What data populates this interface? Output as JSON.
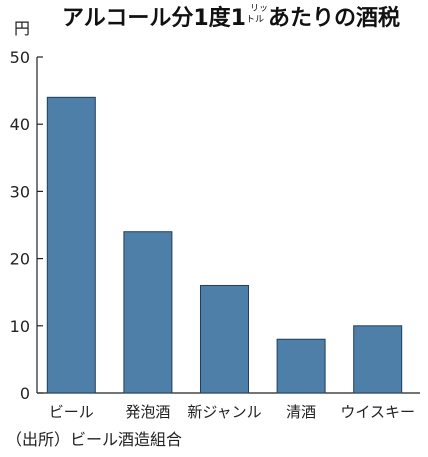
{
  "header": {
    "title_main": "アルコール分1度1",
    "title_unit_top": "リッ",
    "title_unit_bottom": "トル",
    "title_rest": "あたりの酒税",
    "unit": "円"
  },
  "footer": {
    "source": "（出所）ビール酒造組合"
  },
  "colors": {
    "bar": "#4e7fa8",
    "bar_stroke": "#1f3f5c",
    "axis": "#222222"
  },
  "chart_data": {
    "type": "bar",
    "title": "アルコール分1度1リットルあたりの酒税",
    "ylabel": "円",
    "categories": [
      "ビール",
      "発泡酒",
      "新ジャンル",
      "清酒",
      "ウイスキー"
    ],
    "values": [
      44,
      24,
      16,
      8,
      10
    ],
    "ylim": [
      0,
      50
    ],
    "yticks": [
      0,
      10,
      20,
      30,
      40,
      50
    ],
    "grid": false,
    "legend": "none"
  }
}
